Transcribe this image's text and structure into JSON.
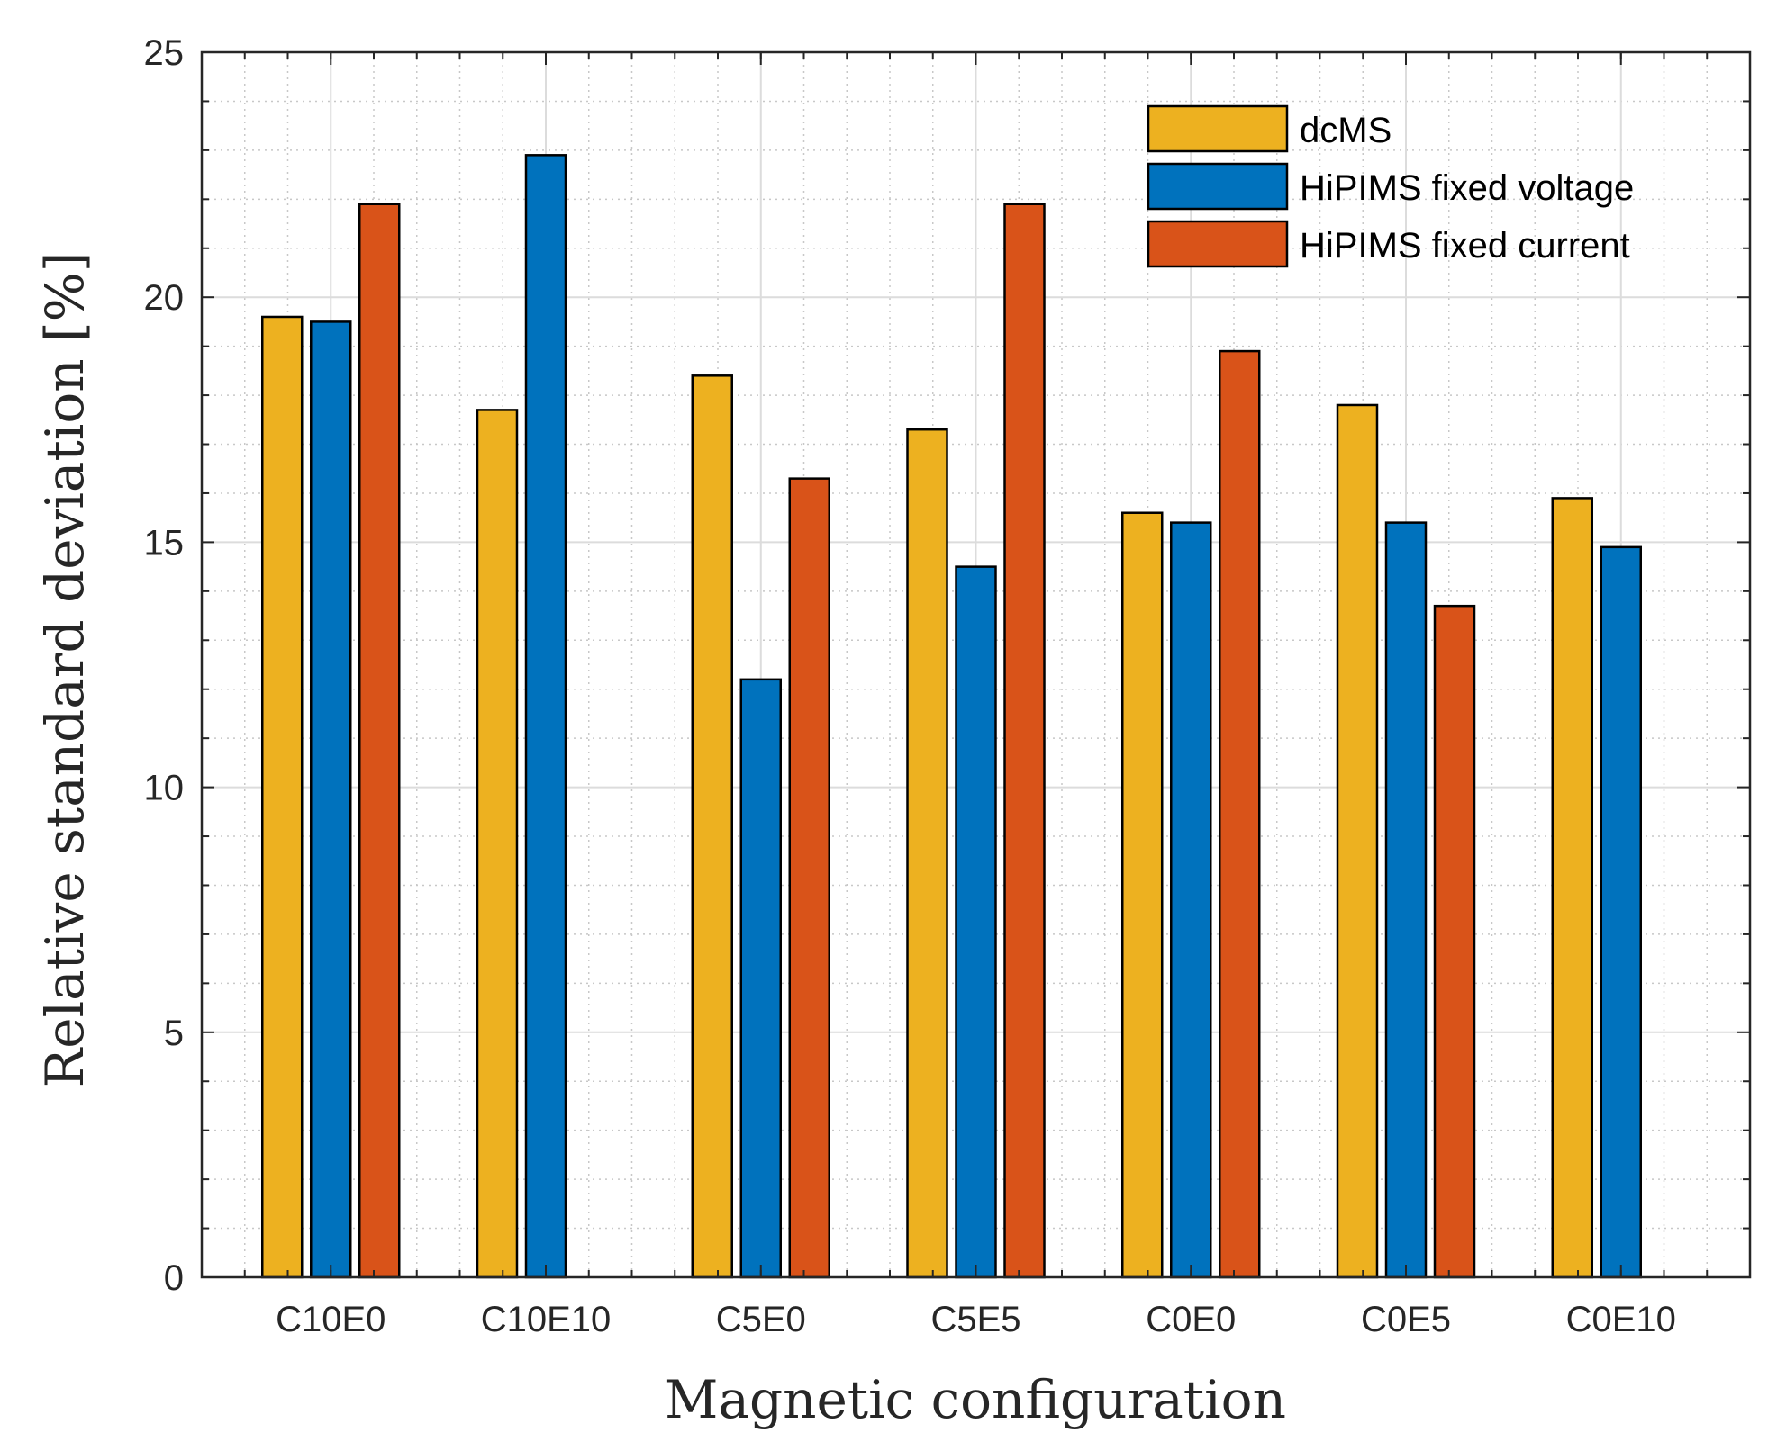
{
  "chart_data": {
    "type": "bar",
    "title": "",
    "xlabel": "Magnetic configuration",
    "ylabel": "Relative standard deviation [%]",
    "ylim": [
      0,
      25
    ],
    "yticks": [
      "0",
      "5",
      "10",
      "15",
      "20",
      "25"
    ],
    "grid": true,
    "minor_grid": true,
    "legend_position": "top-right",
    "categories": [
      "C10E0",
      "C10E10",
      "C5E0",
      "C5E5",
      "C0E0",
      "C0E5",
      "C0E10"
    ],
    "series": [
      {
        "name": "dcMS",
        "color": "#EDB120",
        "values": [
          19.6,
          17.7,
          18.4,
          17.3,
          15.6,
          17.8,
          15.9
        ]
      },
      {
        "name": "HiPIMS fixed voltage",
        "color": "#0072BD",
        "values": [
          19.5,
          22.9,
          12.2,
          14.5,
          15.4,
          15.4,
          14.9
        ]
      },
      {
        "name": "HiPIMS fixed current",
        "color": "#D95319",
        "values": [
          21.9,
          null,
          16.3,
          21.9,
          18.9,
          13.7,
          null
        ]
      }
    ]
  }
}
